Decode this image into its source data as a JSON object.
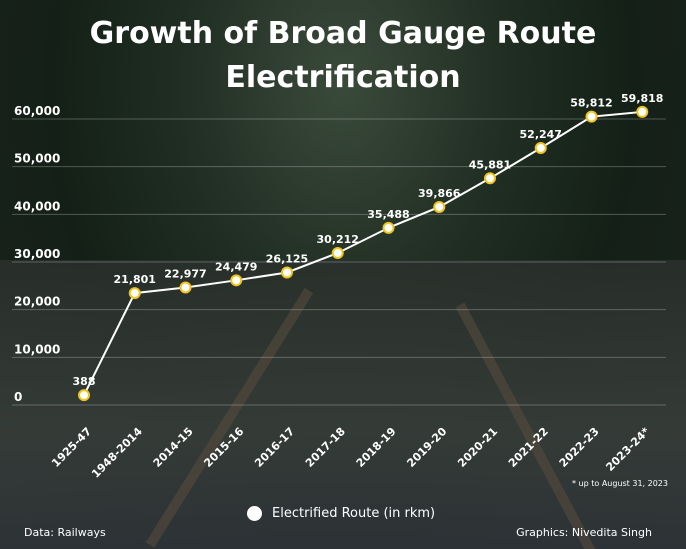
{
  "title_line1": "Growth of Broad Gauge Route",
  "title_line2": "Electrification",
  "chart_data": {
    "type": "line",
    "title": "Growth of Broad Gauge Route Electrification",
    "categories": [
      "1925-47",
      "1948-2014",
      "2014-15",
      "2015-16",
      "2016-17",
      "2017-18",
      "2018-19",
      "2019-20",
      "2020-21",
      "2021-22",
      "2022-23",
      "2023-24*"
    ],
    "series": [
      {
        "name": "Electrified Route (in rkm)",
        "values": [
          388,
          21801,
          22977,
          24479,
          26125,
          30212,
          35488,
          39866,
          45881,
          52247,
          58812,
          59818
        ]
      }
    ],
    "data_labels": [
      "388",
      "21,801",
      "22,977",
      "24,479",
      "26,125",
      "30,212",
      "35,488",
      "39,866",
      "45,881",
      "52,247",
      "58,812",
      "59,818"
    ],
    "yticks": [
      "0",
      "10,000",
      "20,000",
      "30,000",
      "40,000",
      "50,000",
      "60,000"
    ],
    "ylim": [
      0,
      60000
    ],
    "grid": true,
    "legend": "bottom-center",
    "line_color": "#ffffff",
    "marker_color": "#f0c419"
  },
  "note": "* up to August 31, 2023",
  "legend_label": "Electrified Route (in rkm)",
  "source": "Data: Railways",
  "credit": "Graphics: Nivedita Singh"
}
